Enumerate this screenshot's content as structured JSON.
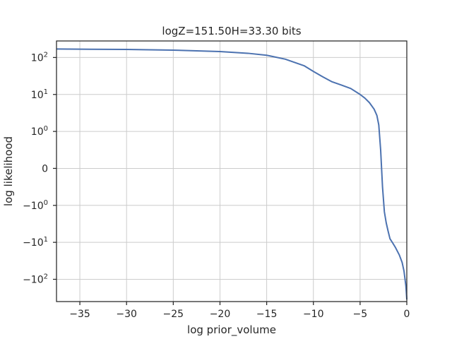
{
  "chart_data": {
    "type": "line",
    "title": "logZ=151.50H=33.30 bits",
    "xlabel": "log prior_volume",
    "ylabel": "log likelihood",
    "xlim": [
      -37.5,
      0
    ],
    "ylim": [
      -400,
      280
    ],
    "yscale": "symlog",
    "grid": true,
    "line_color": "#4c72b0",
    "x_ticks": [
      -35,
      -30,
      -25,
      -20,
      -15,
      -10,
      -5,
      0
    ],
    "x_tick_labels": [
      "−35",
      "−30",
      "−25",
      "−20",
      "−15",
      "−10",
      "−5",
      "0"
    ],
    "y_ticks": [
      {
        "value": 100,
        "base": "10",
        "exp": "2",
        "sign": ""
      },
      {
        "value": 10,
        "base": "10",
        "exp": "1",
        "sign": ""
      },
      {
        "value": 1,
        "base": "10",
        "exp": "0",
        "sign": ""
      },
      {
        "value": 0,
        "plain": "0"
      },
      {
        "value": -1,
        "base": "10",
        "exp": "0",
        "sign": "−"
      },
      {
        "value": -10,
        "base": "10",
        "exp": "1",
        "sign": "−"
      },
      {
        "value": -100,
        "base": "10",
        "exp": "2",
        "sign": "−"
      }
    ],
    "series": [
      {
        "x": [
          -37.5,
          -35,
          -30,
          -25,
          -20,
          -17,
          -15,
          -13,
          -11,
          -10,
          -9,
          -8,
          -7,
          -6,
          -5,
          -4.5,
          -4,
          -3.5,
          -3.2,
          -3.0,
          -2.8,
          -2.6,
          -2.4,
          -2.2,
          -2.0,
          -1.8,
          -1.5,
          -1.2,
          -0.8,
          -0.5,
          -0.3,
          -0.1,
          0
        ],
        "y": [
          170,
          168,
          165,
          158,
          145,
          130,
          115,
          90,
          60,
          42,
          30,
          22,
          18,
          14.5,
          10,
          8,
          6,
          4,
          2.7,
          1.5,
          0.5,
          -0.5,
          -1.5,
          -3,
          -5,
          -8,
          -10.5,
          -14,
          -22,
          -35,
          -60,
          -150,
          -350
        ]
      }
    ]
  }
}
